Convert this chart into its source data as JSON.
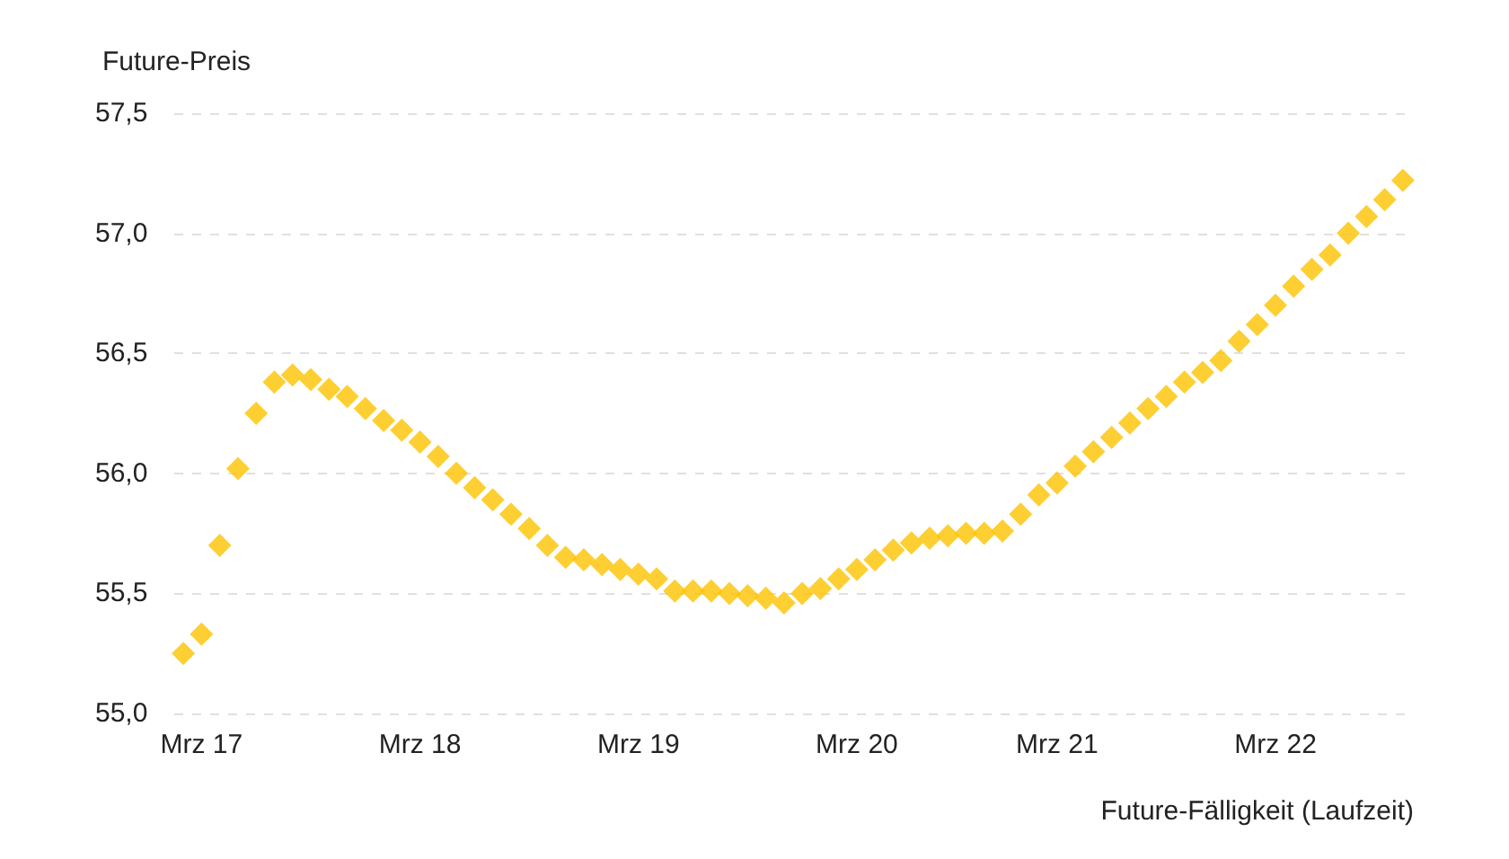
{
  "chart_data": {
    "type": "scatter",
    "ylabel": "Future-Preis",
    "xlabel": "Future-Fälligkeit (Laufzeit)",
    "categories": [
      null,
      "Mrz 17",
      null,
      null,
      null,
      null,
      null,
      null,
      null,
      null,
      null,
      null,
      null,
      "Mrz 18",
      null,
      null,
      null,
      null,
      null,
      null,
      null,
      null,
      null,
      null,
      null,
      "Mrz 19",
      null,
      null,
      null,
      null,
      null,
      null,
      null,
      null,
      null,
      null,
      null,
      "Mrz 20",
      null,
      null,
      null,
      null,
      null,
      null,
      null,
      null,
      null,
      null,
      "Mrz 21",
      null,
      null,
      null,
      null,
      null,
      null,
      null,
      null,
      null,
      null,
      null,
      "Mrz 22",
      null,
      null,
      null,
      null,
      null,
      null,
      null
    ],
    "values": [
      55.25,
      55.33,
      55.7,
      56.02,
      56.25,
      56.38,
      56.41,
      56.39,
      56.35,
      56.32,
      56.27,
      56.22,
      56.18,
      56.13,
      56.07,
      56.0,
      55.94,
      55.89,
      55.83,
      55.77,
      55.7,
      55.65,
      55.64,
      55.62,
      55.6,
      55.58,
      55.56,
      55.51,
      55.51,
      55.51,
      55.5,
      55.49,
      55.48,
      55.46,
      55.5,
      55.52,
      55.56,
      55.6,
      55.64,
      55.68,
      55.71,
      55.73,
      55.74,
      55.75,
      55.75,
      55.76,
      55.83,
      55.91,
      55.96,
      56.03,
      56.09,
      56.15,
      56.21,
      56.27,
      56.32,
      56.38,
      56.42,
      56.47,
      56.55,
      56.62,
      56.7,
      56.78,
      56.85,
      56.91,
      57.0,
      57.07,
      57.14,
      57.22
    ],
    "color": "#fdc300",
    "marker": "diamond",
    "ylim": [
      55.0,
      57.5
    ],
    "yticks": [
      {
        "value": 55.0,
        "label": "55,0"
      },
      {
        "value": 55.5,
        "label": "55,5"
      },
      {
        "value": 56.0,
        "label": "56,0"
      },
      {
        "value": 56.5,
        "label": "56,5"
      },
      {
        "value": 57.0,
        "label": "57,0"
      },
      {
        "value": 57.5,
        "label": "57,5"
      }
    ],
    "grid": "y"
  }
}
